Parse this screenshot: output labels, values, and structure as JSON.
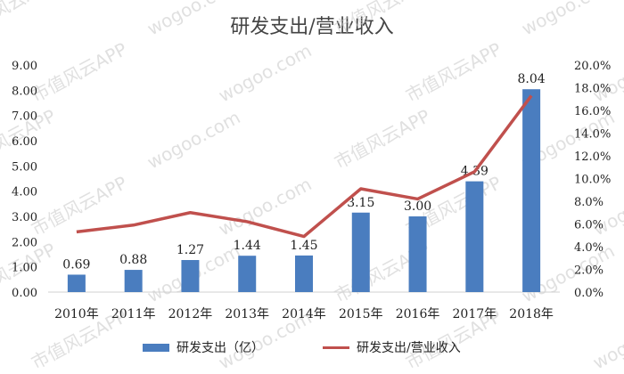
{
  "chart_data": {
    "type": "bar",
    "title": "研发支出/营业收入",
    "categories": [
      "2010年",
      "2011年",
      "2012年",
      "2013年",
      "2014年",
      "2015年",
      "2016年",
      "2017年",
      "2018年"
    ],
    "series": [
      {
        "name": "研发支出（亿）",
        "type": "bar",
        "axis": "left",
        "values": [
          0.69,
          0.88,
          1.27,
          1.44,
          1.45,
          3.15,
          3.0,
          4.39,
          8.04
        ],
        "labels": [
          "0.69",
          "0.88",
          "1.27",
          "1.44",
          "1.45",
          "3.15",
          "3.00",
          "4.39",
          "8.04"
        ]
      },
      {
        "name": "研发支出/营业收入",
        "type": "line",
        "axis": "right",
        "values": [
          5.3,
          5.9,
          7.0,
          6.2,
          4.9,
          9.1,
          8.2,
          10.6,
          17.3
        ]
      }
    ],
    "y_left": {
      "ylim": [
        0,
        9
      ],
      "ticks": [
        "0.00",
        "1.00",
        "2.00",
        "3.00",
        "4.00",
        "5.00",
        "6.00",
        "7.00",
        "8.00",
        "9.00"
      ]
    },
    "y_right": {
      "ylim": [
        0,
        20
      ],
      "ticks": [
        "0.0%",
        "2.0%",
        "4.0%",
        "6.0%",
        "8.0%",
        "10.0%",
        "12.0%",
        "14.0%",
        "16.0%",
        "18.0%",
        "20.0%"
      ]
    },
    "grid": false,
    "legend": "bottom",
    "colors": {
      "bar": "#4a7dbf",
      "line": "#c0504d",
      "axis": "#d0d0d0",
      "text": "#222222"
    }
  },
  "watermark": [
    "市值风云APP",
    "wogoo.com"
  ]
}
